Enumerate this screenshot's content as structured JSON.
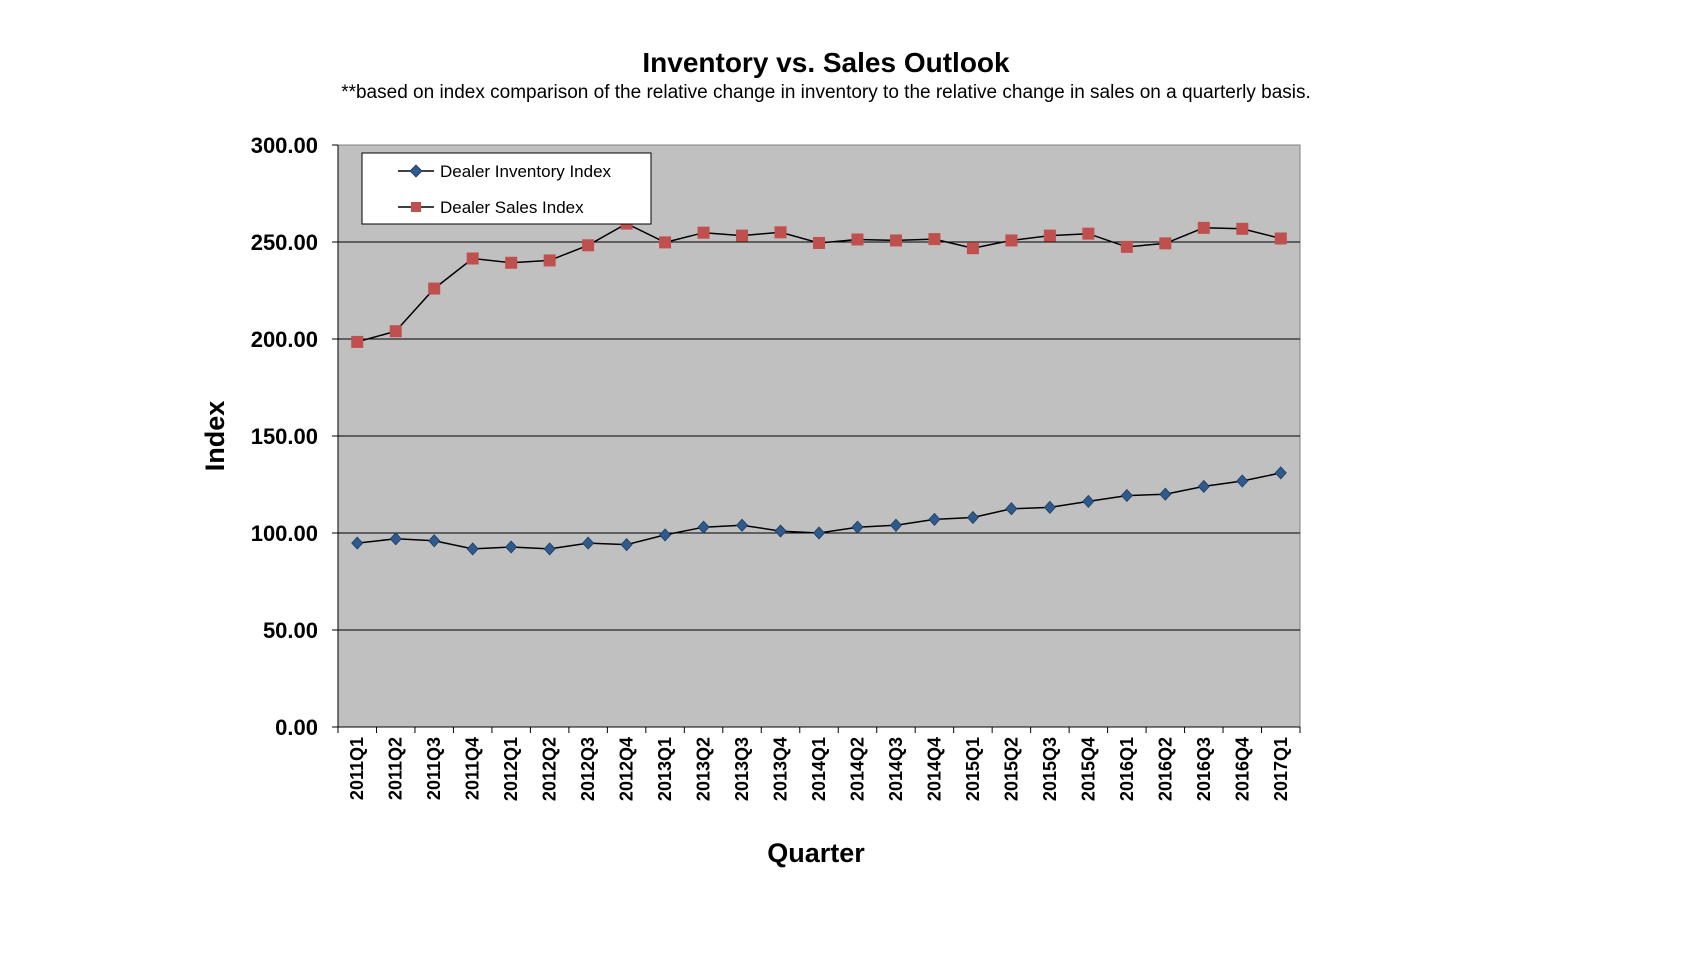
{
  "chart_data": {
    "type": "line",
    "title": "Inventory vs. Sales Outlook",
    "subtitle": "**based on index comparison of the relative change in inventory to the relative change in sales on a quarterly basis.",
    "xlabel": "Quarter",
    "ylabel": "Index",
    "ylim": [
      0,
      300
    ],
    "yticks": [
      "0.00",
      "50.00",
      "100.00",
      "150.00",
      "200.00",
      "250.00",
      "300.00"
    ],
    "grid": "horizontal",
    "legend_position": "top-left",
    "plot_background": "#c0c0c0",
    "categories": [
      "2011Q1",
      "2011Q2",
      "2011Q3",
      "2011Q4",
      "2012Q1",
      "2012Q2",
      "2012Q3",
      "2012Q4",
      "2013Q1",
      "2013Q2",
      "2013Q3",
      "2013Q4",
      "2014Q1",
      "2014Q2",
      "2014Q3",
      "2014Q4",
      "2015Q1",
      "2015Q2",
      "2015Q3",
      "2015Q4",
      "2016Q1",
      "2016Q2",
      "2016Q3",
      "2016Q4",
      "2017Q1"
    ],
    "series": [
      {
        "name": "Dealer Inventory Index",
        "color": "#2f5a8c",
        "marker": "diamond",
        "values": [
          94.8,
          97.0,
          96.0,
          91.8,
          92.8,
          91.8,
          94.8,
          94.0,
          99.0,
          103.0,
          104.0,
          101.0,
          100.0,
          103.0,
          104.0,
          107.0,
          108.0,
          112.5,
          113.2,
          116.3,
          119.3,
          120.0,
          124.0,
          126.8,
          131.0
        ]
      },
      {
        "name": "Dealer Sales Index",
        "color": "#c0504d",
        "marker": "square",
        "values": [
          198.5,
          204.0,
          226.0,
          241.5,
          239.3,
          240.5,
          248.3,
          259.5,
          249.8,
          254.8,
          253.3,
          255.0,
          249.5,
          251.3,
          250.8,
          251.5,
          246.8,
          250.8,
          253.3,
          254.3,
          247.5,
          249.3,
          257.3,
          256.8,
          251.8
        ]
      }
    ]
  }
}
